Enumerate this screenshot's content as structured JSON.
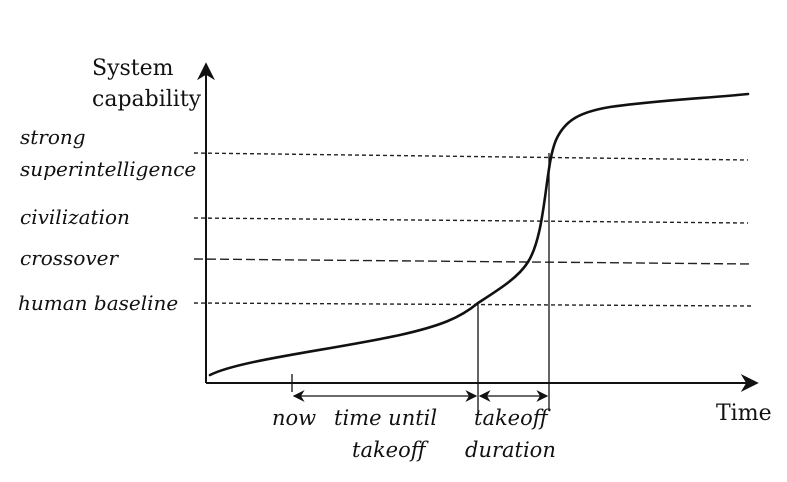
{
  "axes": {
    "y_title_line1": "System",
    "y_title_line2": "capability",
    "x_title": "Time"
  },
  "levels": [
    {
      "key": "strong-superintelligence",
      "label_line1": "strong",
      "label_line2": "superintelligence"
    },
    {
      "key": "civilization",
      "label_line1": "civilization"
    },
    {
      "key": "crossover",
      "label_line1": "crossover"
    },
    {
      "key": "human-baseline",
      "label_line1": "human baseline"
    }
  ],
  "timeline": {
    "now": "now",
    "time_until_line1": "time until",
    "time_until_line2": "takeoff",
    "takeoff_line1": "takeoff",
    "takeoff_line2": "duration"
  }
}
